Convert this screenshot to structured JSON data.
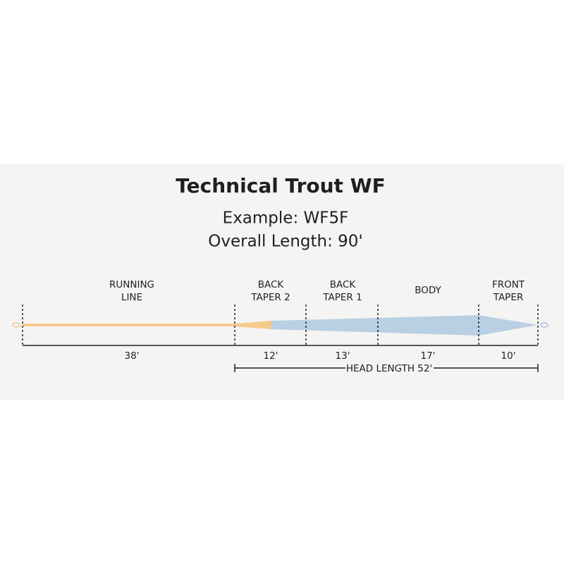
{
  "title": "Technical Trout WF",
  "example": "Example: WF5F",
  "overall_length": "Overall Length: 90'",
  "segments": [
    {
      "label": [
        "RUNNING",
        "LINE"
      ],
      "length": "38'"
    },
    {
      "label": [
        "BACK",
        "TAPER 2"
      ],
      "length": "12'"
    },
    {
      "label": [
        "BACK",
        "TAPER 1"
      ],
      "length": "13'"
    },
    {
      "label": [
        "BODY"
      ],
      "length": "17'"
    },
    {
      "label": [
        "FRONT",
        "TAPER"
      ],
      "length": "10'"
    }
  ],
  "head_length": "HEAD LENGTH 52'"
}
